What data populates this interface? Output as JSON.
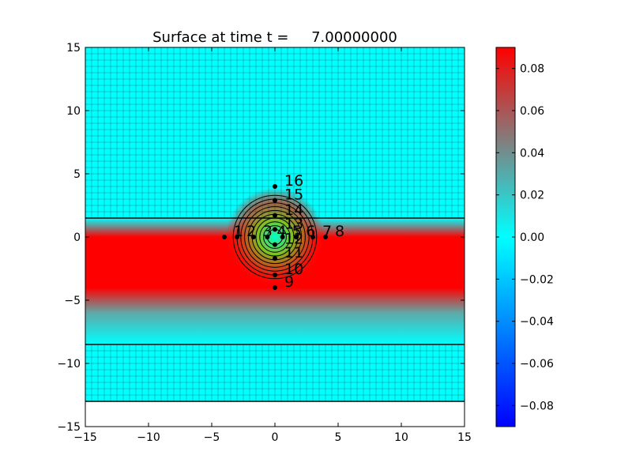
{
  "chart_data": {
    "type": "heatmap",
    "title": "Surface at time t =     7.00000000",
    "xlim": [
      -15,
      15
    ],
    "ylim": [
      -15,
      15
    ],
    "xticks": [
      -15,
      -10,
      -5,
      0,
      5,
      10,
      15
    ],
    "yticks": [
      -15,
      -10,
      -5,
      0,
      5,
      10,
      15
    ],
    "xtick_labels": [
      "−15",
      "−10",
      "−5",
      "0",
      "5",
      "10",
      "15"
    ],
    "ytick_labels": [
      "−15",
      "−10",
      "−5",
      "0",
      "5",
      "10",
      "15"
    ],
    "domain_bounds": {
      "ymin": -13,
      "ymax": 15
    },
    "horizontal_lines_y": [
      1.5,
      -8.5
    ],
    "red_band_y": [
      -4.2,
      0.4
    ],
    "grid_spacing": 0.5,
    "colorbar": {
      "min": -0.09,
      "max": 0.09,
      "ticks": [
        -0.08,
        -0.06,
        -0.04,
        -0.02,
        0.0,
        0.02,
        0.04,
        0.06,
        0.08
      ],
      "tick_labels": [
        "−0.08",
        "−0.06",
        "−0.04",
        "−0.02",
        "0.00",
        "0.02",
        "0.04",
        "0.06",
        "0.08"
      ],
      "colors": [
        "#0000ff",
        "#00ffff",
        "#ff0000"
      ]
    },
    "contour": {
      "center": [
        0,
        0
      ],
      "radii": [
        0.6,
        0.9,
        1.2,
        1.5,
        1.8,
        2.1,
        2.4,
        2.7,
        3.0,
        3.3
      ],
      "color": "#000000"
    },
    "gauges": [
      {
        "label": "1",
        "x": -4,
        "y": 0
      },
      {
        "label": "2",
        "x": -3,
        "y": 0
      },
      {
        "label": "3",
        "x": -1.7,
        "y": 0
      },
      {
        "label": "4",
        "x": -0.6,
        "y": 0
      },
      {
        "label": "5",
        "x": 0.6,
        "y": 0
      },
      {
        "label": "6",
        "x": 1.7,
        "y": 0
      },
      {
        "label": "7",
        "x": 3,
        "y": 0
      },
      {
        "label": "8",
        "x": 4,
        "y": 0
      },
      {
        "label": "9",
        "x": 0,
        "y": -4
      },
      {
        "label": "10",
        "x": 0,
        "y": -3
      },
      {
        "label": "11",
        "x": 0,
        "y": -1.7
      },
      {
        "label": "12",
        "x": 0,
        "y": -0.6
      },
      {
        "label": "13",
        "x": 0,
        "y": 0.6
      },
      {
        "label": "14",
        "x": 0,
        "y": 1.7
      },
      {
        "label": "15",
        "x": 0,
        "y": 2.9
      },
      {
        "label": "16",
        "x": 0,
        "y": 4
      }
    ]
  }
}
